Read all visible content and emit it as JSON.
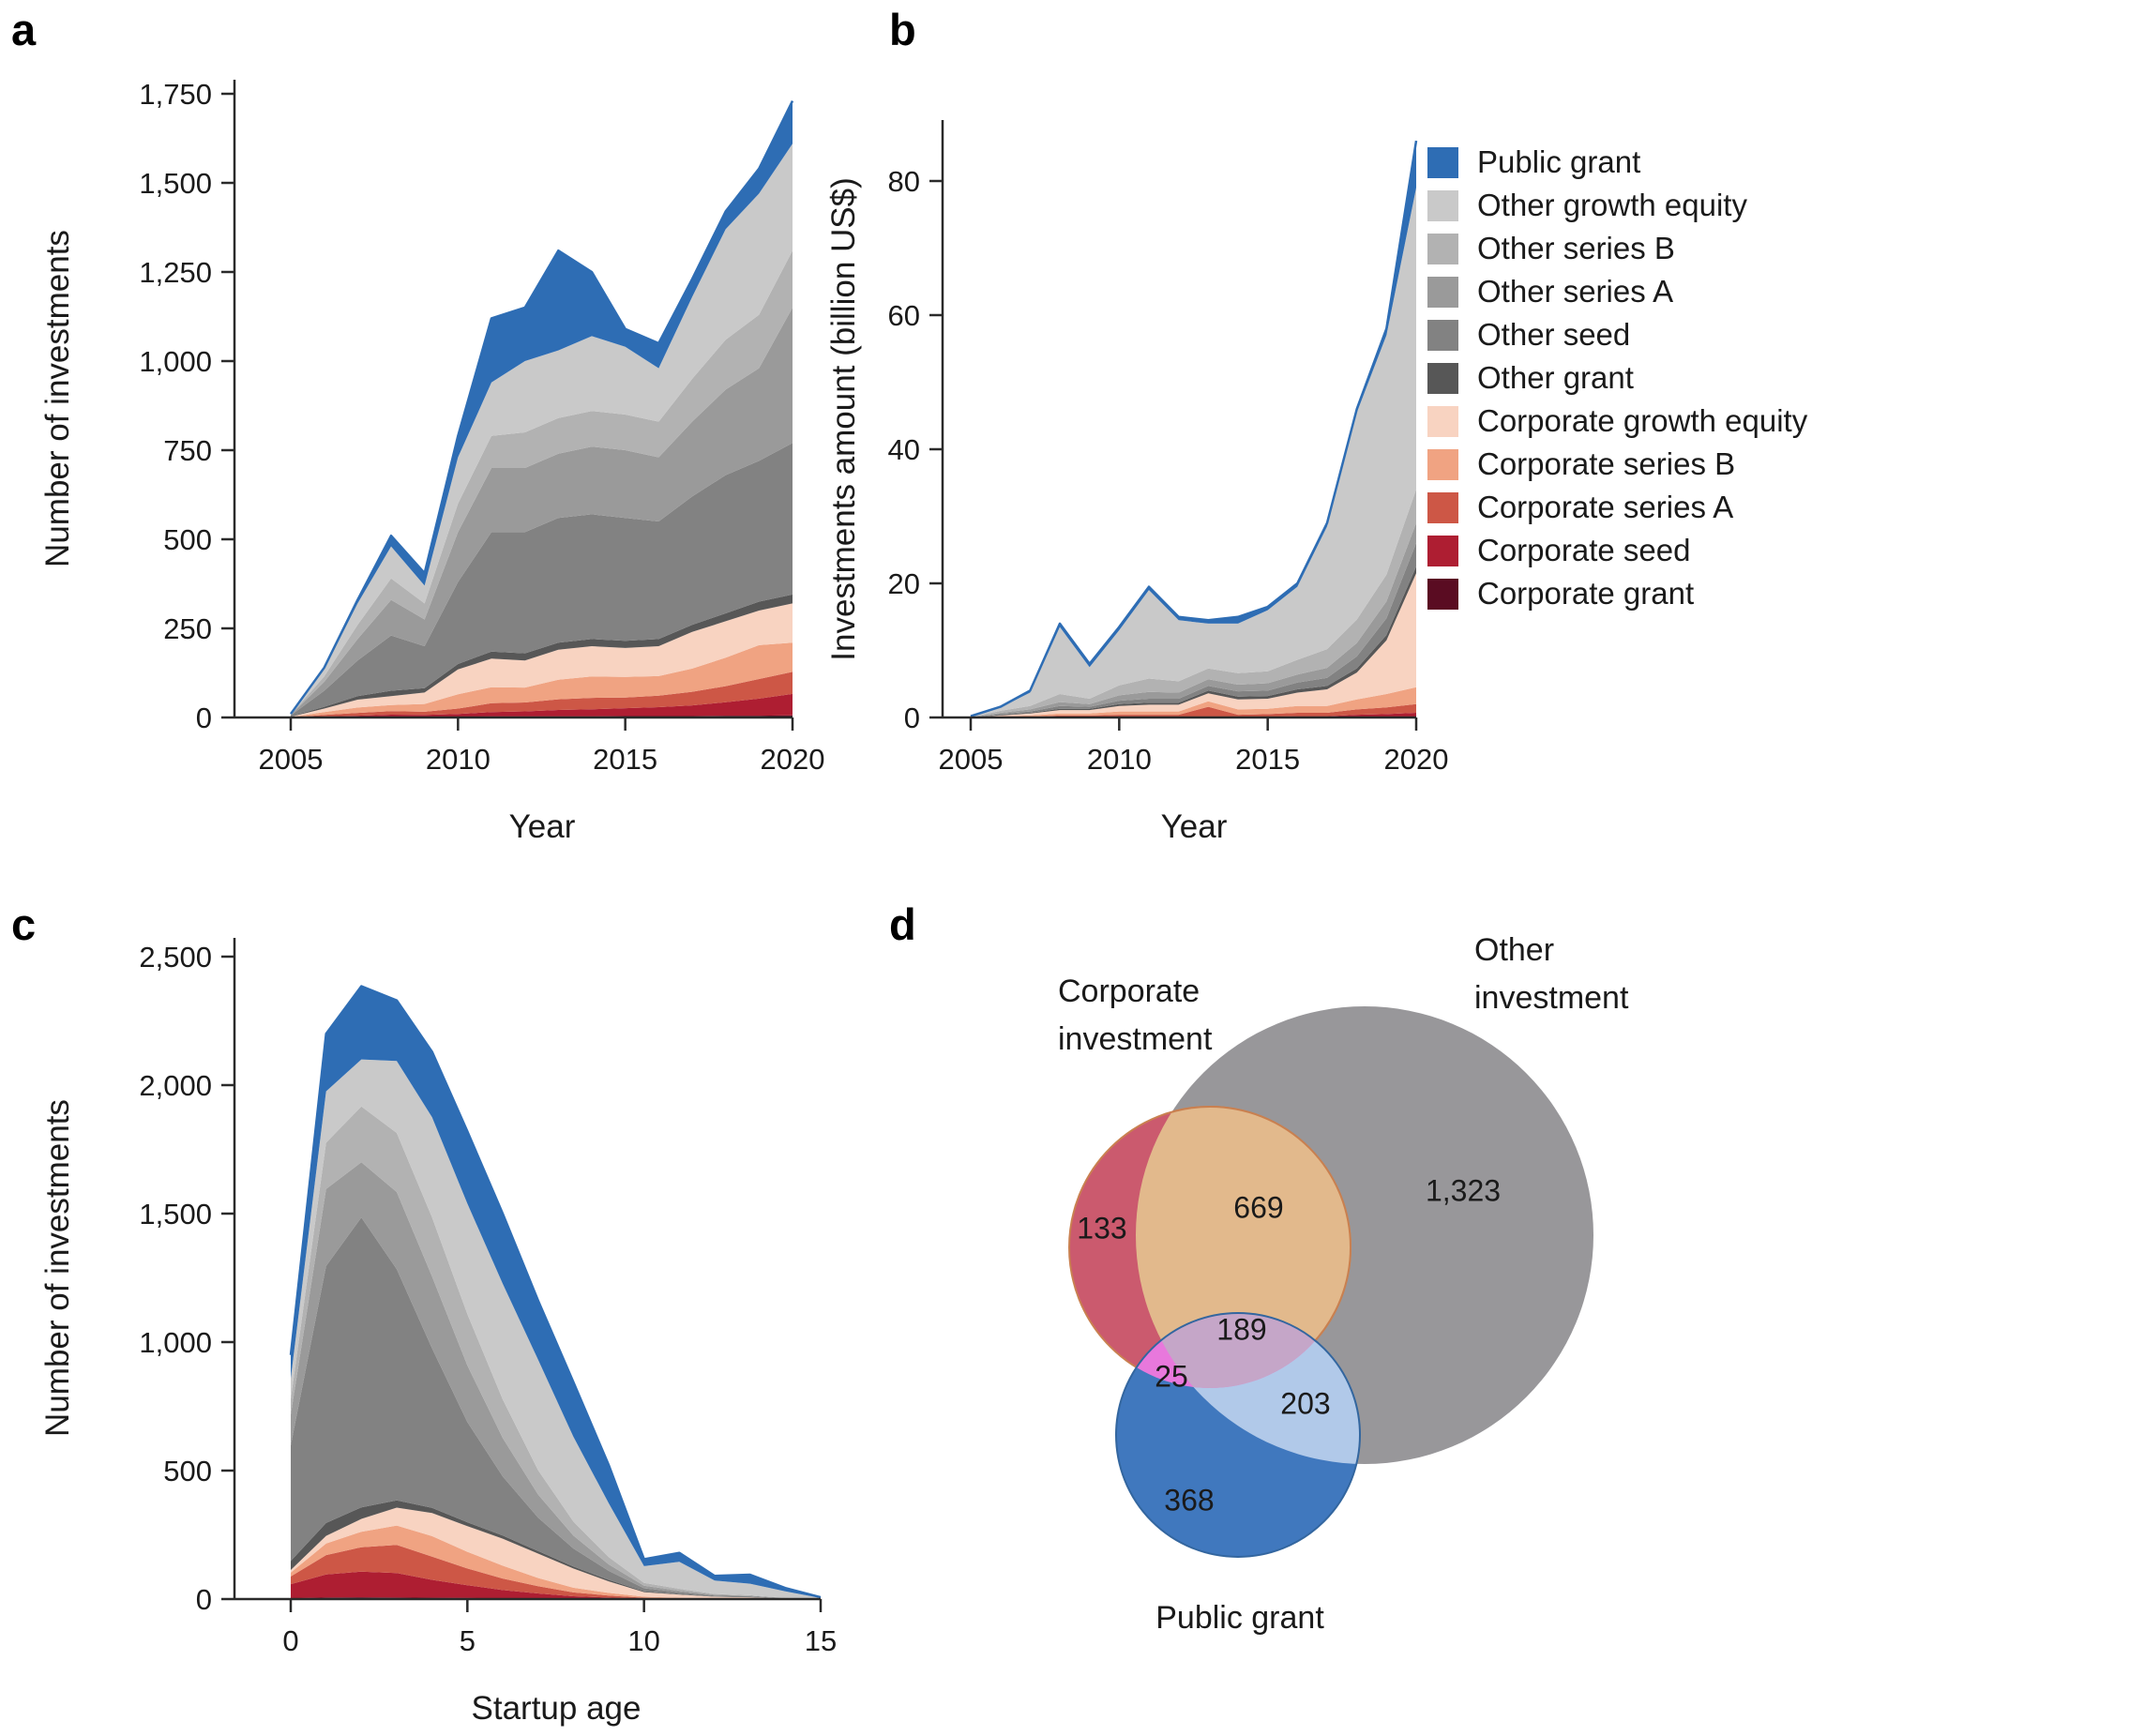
{
  "figure": {
    "panels": {
      "a": {
        "letter": "a",
        "ylabel": "Number of investments",
        "xlabel": "Year"
      },
      "b": {
        "letter": "b",
        "ylabel": "Investments amount (billion US$)",
        "xlabel": "Year"
      },
      "c": {
        "letter": "c",
        "ylabel": "Number of investments",
        "xlabel": "Startup age"
      },
      "d": {
        "letter": "d"
      }
    },
    "legend": {
      "items": [
        {
          "label": "Public grant",
          "color": "#2e6db4"
        },
        {
          "label": "Other growth equity",
          "color": "#c9c9c9"
        },
        {
          "label": "Other series B",
          "color": "#b2b2b2"
        },
        {
          "label": "Other series A",
          "color": "#9a9a9a"
        },
        {
          "label": "Other seed",
          "color": "#828282"
        },
        {
          "label": "Other grant",
          "color": "#575757"
        },
        {
          "label": "Corporate growth equity",
          "color": "#f8d3c1"
        },
        {
          "label": "Corporate series B",
          "color": "#f0a382"
        },
        {
          "label": "Corporate series A",
          "color": "#cd5746"
        },
        {
          "label": "Corporate seed",
          "color": "#ae1e32"
        },
        {
          "label": "Corporate grant",
          "color": "#5a0c22"
        }
      ]
    }
  },
  "chart_data": [
    {
      "type": "area",
      "panel": "a",
      "stacked": true,
      "title": "Number of investments per year by investment type",
      "xlabel": "Year",
      "ylabel": "Number of investments",
      "x": [
        2005,
        2006,
        2007,
        2008,
        2009,
        2010,
        2011,
        2012,
        2013,
        2014,
        2015,
        2016,
        2017,
        2018,
        2019,
        2020
      ],
      "ylim": [
        0,
        1750
      ],
      "yticks": [
        {
          "v": 0,
          "label": "0"
        },
        {
          "v": 250,
          "label": "250"
        },
        {
          "v": 500,
          "label": "500"
        },
        {
          "v": 750,
          "label": "750"
        },
        {
          "v": 1000,
          "label": "1,000"
        },
        {
          "v": 1250,
          "label": "1,250"
        },
        {
          "v": 1500,
          "label": "1,500"
        },
        {
          "v": 1750,
          "label": "1,750"
        }
      ],
      "xticks": [
        {
          "v": 2005,
          "label": "2005"
        },
        {
          "v": 2010,
          "label": "2010"
        },
        {
          "v": 2015,
          "label": "2015"
        },
        {
          "v": 2020,
          "label": "2020"
        }
      ],
      "series": [
        {
          "name": "Corporate grant",
          "color": "#5a0c22",
          "values": [
            0,
            1,
            1,
            2,
            2,
            2,
            3,
            3,
            3,
            3,
            4,
            4,
            4,
            5,
            5,
            6
          ]
        },
        {
          "name": "Corporate seed",
          "color": "#ae1e32",
          "values": [
            0,
            2,
            4,
            6,
            5,
            8,
            12,
            14,
            18,
            20,
            22,
            25,
            30,
            38,
            48,
            60
          ]
        },
        {
          "name": "Corporate series A",
          "color": "#cd5746",
          "values": [
            0,
            4,
            8,
            10,
            9,
            15,
            25,
            25,
            30,
            32,
            30,
            32,
            38,
            45,
            55,
            62
          ]
        },
        {
          "name": "Corporate series B",
          "color": "#f0a382",
          "values": [
            1,
            8,
            15,
            17,
            22,
            40,
            45,
            42,
            55,
            60,
            58,
            55,
            65,
            80,
            95,
            82
          ]
        },
        {
          "name": "Corporate growth equity",
          "color": "#f8d3c1",
          "values": [
            1,
            10,
            22,
            25,
            32,
            70,
            80,
            76,
            84,
            85,
            81,
            84,
            103,
            102,
            97,
            110
          ]
        },
        {
          "name": "Other grant",
          "color": "#575757",
          "values": [
            1,
            5,
            10,
            15,
            12,
            15,
            20,
            20,
            20,
            20,
            20,
            20,
            20,
            22,
            25,
            25
          ]
        },
        {
          "name": "Other seed",
          "color": "#828282",
          "values": [
            3,
            45,
            100,
            155,
            118,
            230,
            335,
            340,
            350,
            350,
            345,
            330,
            360,
            388,
            395,
            425
          ]
        },
        {
          "name": "Other series A",
          "color": "#9a9a9a",
          "values": [
            1,
            25,
            60,
            100,
            75,
            140,
            180,
            180,
            180,
            190,
            190,
            180,
            210,
            240,
            260,
            380
          ]
        },
        {
          "name": "Other series B",
          "color": "#b2b2b2",
          "values": [
            1,
            15,
            40,
            60,
            45,
            80,
            90,
            100,
            100,
            100,
            100,
            100,
            120,
            140,
            150,
            160
          ]
        },
        {
          "name": "Other growth equity",
          "color": "#c9c9c9",
          "values": [
            1,
            20,
            60,
            90,
            50,
            130,
            150,
            200,
            190,
            210,
            190,
            150,
            230,
            310,
            340,
            300
          ]
        },
        {
          "name": "Public grant",
          "color": "#2e6db4",
          "values": [
            1,
            5,
            10,
            30,
            35,
            60,
            180,
            150,
            280,
            180,
            50,
            70,
            50,
            50,
            70,
            120
          ]
        }
      ]
    },
    {
      "type": "area",
      "panel": "b",
      "stacked": true,
      "title": "Investments amount (billion US$) per year by investment type",
      "xlabel": "Year",
      "ylabel": "Investments amount (billion US$)",
      "x": [
        2005,
        2006,
        2007,
        2008,
        2009,
        2010,
        2011,
        2012,
        2013,
        2014,
        2015,
        2016,
        2017,
        2018,
        2019,
        2020
      ],
      "ylim": [
        0,
        88
      ],
      "yticks": [
        {
          "v": 0,
          "label": "0"
        },
        {
          "v": 20,
          "label": "20"
        },
        {
          "v": 40,
          "label": "40"
        },
        {
          "v": 60,
          "label": "60"
        },
        {
          "v": 80,
          "label": "80"
        }
      ],
      "xticks": [
        {
          "v": 2005,
          "label": "2005"
        },
        {
          "v": 2010,
          "label": "2010"
        },
        {
          "v": 2015,
          "label": "2015"
        },
        {
          "v": 2020,
          "label": "2020"
        }
      ],
      "series": [
        {
          "name": "Corporate grant",
          "color": "#5a0c22",
          "values": [
            0,
            0,
            0,
            0,
            0,
            0,
            0,
            0,
            0,
            0,
            0,
            0,
            0,
            0.1,
            0.1,
            0.1
          ]
        },
        {
          "name": "Corporate seed",
          "color": "#ae1e32",
          "values": [
            0,
            0,
            0,
            0.1,
            0.1,
            0.1,
            0.1,
            0.1,
            0.1,
            0.1,
            0.1,
            0.2,
            0.2,
            0.3,
            0.4,
            0.6
          ]
        },
        {
          "name": "Corporate series A",
          "color": "#cd5746",
          "values": [
            0,
            0.1,
            0.1,
            0.2,
            0.2,
            0.3,
            0.3,
            0.3,
            1.5,
            0.3,
            0.4,
            0.5,
            0.5,
            0.8,
            1.0,
            1.3
          ]
        },
        {
          "name": "Corporate series B",
          "color": "#f0a382",
          "values": [
            0,
            0.1,
            0.2,
            0.3,
            0.3,
            0.5,
            0.5,
            0.5,
            0.8,
            0.8,
            0.8,
            1.0,
            1.0,
            1.5,
            2.0,
            2.5
          ]
        },
        {
          "name": "Corporate growth equity",
          "color": "#f8d3c1",
          "values": [
            0,
            0.1,
            0.3,
            0.5,
            0.5,
            0.8,
            1.0,
            1.0,
            1.2,
            1.5,
            1.5,
            2.0,
            2.5,
            4.0,
            8.0,
            17.0
          ]
        },
        {
          "name": "Other grant",
          "color": "#575757",
          "values": [
            0,
            0.1,
            0.1,
            0.2,
            0.2,
            0.3,
            0.3,
            0.3,
            0.4,
            0.4,
            0.4,
            0.5,
            0.5,
            0.6,
            0.8,
            1.0
          ]
        },
        {
          "name": "Other seed",
          "color": "#828282",
          "values": [
            0,
            0.1,
            0.2,
            0.4,
            0.3,
            0.5,
            0.6,
            0.6,
            0.7,
            0.8,
            0.8,
            1.0,
            1.2,
            1.8,
            2.5,
            3.5
          ]
        },
        {
          "name": "Other series A",
          "color": "#9a9a9a",
          "values": [
            0,
            0.2,
            0.3,
            0.6,
            0.4,
            0.8,
            1.0,
            0.9,
            1.0,
            1.0,
            1.1,
            1.2,
            1.5,
            2.0,
            2.5,
            3.0
          ]
        },
        {
          "name": "Other series B",
          "color": "#b2b2b2",
          "values": [
            0.05,
            0.3,
            0.5,
            1.2,
            0.8,
            1.5,
            2.0,
            1.7,
            1.6,
            1.7,
            1.8,
            2.2,
            2.8,
            3.5,
            4.0,
            5.0
          ]
        },
        {
          "name": "Other growth equity",
          "color": "#c9c9c9",
          "values": [
            0.1,
            0.5,
            2.0,
            10.0,
            4.7,
            8.2,
            13.2,
            9.1,
            6.7,
            7.4,
            9.1,
            10.9,
            18.3,
            30.9,
            35.7,
            45.0
          ]
        },
        {
          "name": "Public grant",
          "color": "#2e6db4",
          "values": [
            0.05,
            0.1,
            0.3,
            0.5,
            0.5,
            0.5,
            0.5,
            0.5,
            0.5,
            1.0,
            0.5,
            0.5,
            0.5,
            0.5,
            1.0,
            7.0
          ]
        }
      ]
    },
    {
      "type": "area",
      "panel": "c",
      "stacked": true,
      "title": "Number of investments by startup age and investment type",
      "xlabel": "Startup age",
      "ylabel": "Number of investments",
      "x": [
        0,
        1,
        2,
        3,
        4,
        5,
        6,
        7,
        8,
        9,
        10,
        11,
        12,
        13,
        14,
        15
      ],
      "ylim": [
        0,
        2500
      ],
      "yticks": [
        {
          "v": 0,
          "label": "0"
        },
        {
          "v": 500,
          "label": "500"
        },
        {
          "v": 1000,
          "label": "1,000"
        },
        {
          "v": 1500,
          "label": "1,500"
        },
        {
          "v": 2000,
          "label": "2,000"
        },
        {
          "v": 2500,
          "label": "2,500"
        }
      ],
      "xticks": [
        {
          "v": 0,
          "label": "0"
        },
        {
          "v": 5,
          "label": "5"
        },
        {
          "v": 10,
          "label": "10"
        },
        {
          "v": 15,
          "label": "15"
        }
      ],
      "series": [
        {
          "name": "Corporate grant",
          "color": "#5a0c22",
          "values": [
            3,
            6,
            7,
            6,
            5,
            4,
            3,
            2,
            1,
            1,
            0,
            0,
            0,
            0,
            0,
            0
          ]
        },
        {
          "name": "Corporate seed",
          "color": "#ae1e32",
          "values": [
            55,
            90,
            100,
            95,
            70,
            50,
            32,
            20,
            10,
            5,
            2,
            1,
            1,
            0,
            0,
            0
          ]
        },
        {
          "name": "Corporate series A",
          "color": "#cd5746",
          "values": [
            30,
            75,
            95,
            110,
            90,
            65,
            45,
            28,
            15,
            8,
            3,
            2,
            1,
            1,
            0,
            0
          ]
        },
        {
          "name": "Corporate series B",
          "color": "#f0a382",
          "values": [
            15,
            45,
            60,
            75,
            80,
            65,
            50,
            32,
            18,
            10,
            4,
            2,
            1,
            1,
            0,
            0
          ]
        },
        {
          "name": "Corporate growth equity",
          "color": "#f8d3c1",
          "values": [
            10,
            30,
            50,
            70,
            90,
            100,
            105,
            95,
            75,
            45,
            18,
            12,
            6,
            5,
            2,
            0
          ]
        },
        {
          "name": "Other grant",
          "color": "#575757",
          "values": [
            35,
            50,
            45,
            28,
            20,
            15,
            12,
            10,
            8,
            6,
            3,
            2,
            1,
            1,
            0,
            0
          ]
        },
        {
          "name": "Other seed",
          "color": "#828282",
          "values": [
            450,
            1000,
            1128,
            900,
            620,
            390,
            230,
            130,
            70,
            35,
            12,
            8,
            4,
            3,
            1,
            0
          ]
        },
        {
          "name": "Other series A",
          "color": "#9a9a9a",
          "values": [
            120,
            300,
            215,
            300,
            280,
            220,
            150,
            90,
            50,
            25,
            10,
            6,
            3,
            2,
            1,
            0
          ]
        },
        {
          "name": "Other series B",
          "color": "#b2b2b2",
          "values": [
            60,
            180,
            217,
            230,
            230,
            200,
            150,
            95,
            55,
            28,
            11,
            7,
            3,
            2,
            1,
            0
          ]
        },
        {
          "name": "Other growth equity",
          "color": "#c9c9c9",
          "values": [
            80,
            200,
            183,
            280,
            390,
            430,
            450,
            430,
            330,
            210,
            65,
            105,
            52,
            45,
            25,
            4
          ]
        },
        {
          "name": "Public grant",
          "color": "#2e6db4",
          "values": [
            92,
            224,
            285,
            236,
            255,
            281,
            273,
            230,
            213,
            149,
            27,
            35,
            18,
            35,
            13,
            3
          ]
        }
      ]
    },
    {
      "type": "venn",
      "panel": "d",
      "title": "Overlap of corporate investment, other investment and public grant",
      "sets": [
        {
          "name": "Corporate investment",
          "line1": "Corporate",
          "line2": "investment",
          "color": "#cb5a6e"
        },
        {
          "name": "Other investment",
          "line1": "Other",
          "line2": "investment",
          "color": "#98979a"
        },
        {
          "name": "Public grant",
          "line1": "Public grant",
          "line2": "",
          "color": "#4078be"
        }
      ],
      "regions": [
        {
          "sets": [
            "Corporate investment"
          ],
          "value": 133,
          "display": "133"
        },
        {
          "sets": [
            "Corporate investment",
            "Other investment"
          ],
          "value": 669,
          "display": "669"
        },
        {
          "sets": [
            "Other investment"
          ],
          "value": 1323,
          "display": "1,323"
        },
        {
          "sets": [
            "Corporate investment",
            "Other investment",
            "Public grant"
          ],
          "value": 189,
          "display": "189"
        },
        {
          "sets": [
            "Corporate investment",
            "Public grant"
          ],
          "value": 25,
          "display": "25"
        },
        {
          "sets": [
            "Other investment",
            "Public grant"
          ],
          "value": 203,
          "display": "203"
        },
        {
          "sets": [
            "Public grant"
          ],
          "value": 368,
          "display": "368"
        }
      ],
      "colors": {
        "corporate_only": "#cb5a6e",
        "other_only": "#98979a",
        "public_only": "#4078be",
        "corporate_other": "#e2b98c",
        "corporate_public": "#e878dc",
        "public_other": "#b1c9e9",
        "triple": "#c5a6c8",
        "corporate_border": "#c98050",
        "public_border": "#33669f"
      }
    }
  ]
}
